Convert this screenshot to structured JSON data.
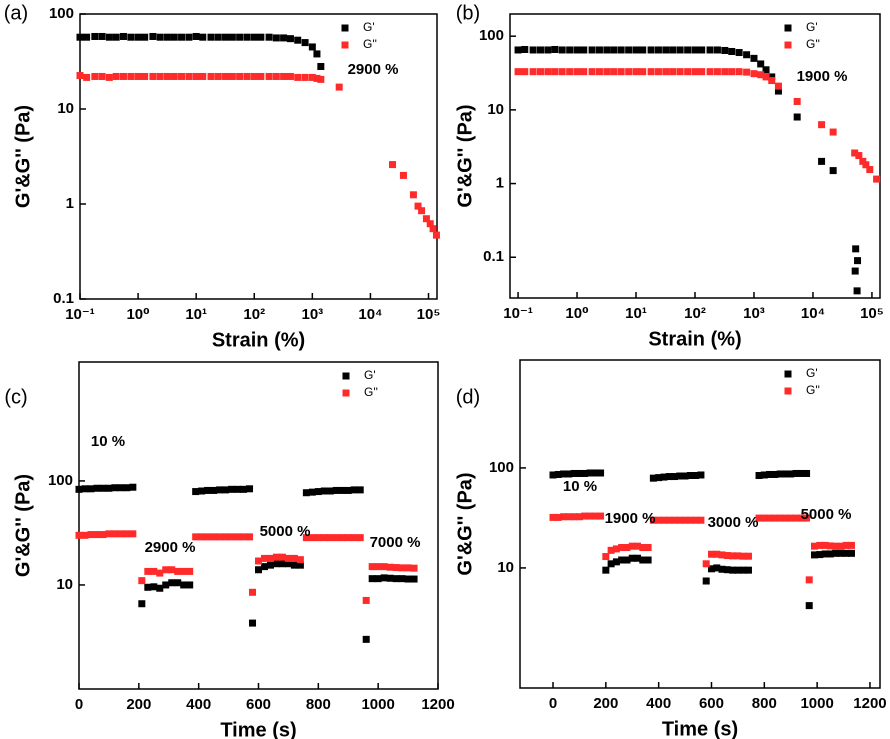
{
  "chart_data": [
    {
      "type": "scatter",
      "panel_label": "(a)",
      "x_label": "Strain (%)",
      "y_label": "G'&G'' (Pa)",
      "xscale": "log",
      "yscale": "log",
      "legend": "upper right",
      "xlim": [
        0.1,
        140000
      ],
      "ylim": [
        0.1,
        100
      ],
      "xticks": [
        {
          "value": 0.1,
          "label": "10⁻¹"
        },
        {
          "value": 1,
          "label": "10⁰"
        },
        {
          "value": 10,
          "label": "10¹"
        },
        {
          "value": 100,
          "label": "10²"
        },
        {
          "value": 1000,
          "label": "10³"
        },
        {
          "value": 10000,
          "label": "10⁴"
        },
        {
          "value": 100000,
          "label": "10⁵"
        }
      ],
      "yticks": [
        0.1,
        1,
        10,
        100
      ],
      "annotations": [
        "2900 %"
      ],
      "series": [
        {
          "name": "G'",
          "color": "#000000",
          "x": [
            0.1,
            0.13,
            0.18,
            0.24,
            0.32,
            0.42,
            0.56,
            0.75,
            1,
            1.3,
            1.8,
            2.4,
            3.2,
            4.2,
            5.6,
            7.5,
            10,
            13,
            18,
            24,
            32,
            42,
            56,
            75,
            100,
            130,
            180,
            240,
            320,
            420,
            560,
            750,
            1000,
            1200,
            1400
          ],
          "values": [
            57,
            57,
            58,
            58,
            57,
            57,
            58,
            57,
            57,
            57,
            58,
            57,
            57,
            57,
            57,
            57,
            58,
            57,
            57,
            57,
            57,
            57,
            57,
            57,
            57,
            57,
            57,
            56,
            56,
            55,
            53,
            50,
            45,
            38,
            28
          ]
        },
        {
          "name": "G''",
          "color": "#ff2a2a",
          "x": [
            0.1,
            0.13,
            0.18,
            0.24,
            0.32,
            0.42,
            0.56,
            0.75,
            1,
            1.3,
            1.8,
            2.4,
            3.2,
            4.2,
            5.6,
            7.5,
            10,
            13,
            18,
            24,
            32,
            42,
            56,
            75,
            100,
            130,
            180,
            240,
            320,
            420,
            560,
            750,
            1000,
            1200,
            1400,
            2900,
            24000,
            37000,
            55000,
            66000,
            76000,
            92000,
            107000,
            120000,
            137000
          ],
          "values": [
            22.5,
            21.5,
            22,
            22,
            21.5,
            22,
            22,
            22,
            22,
            22,
            22,
            22,
            22,
            22,
            22,
            22,
            22,
            22,
            22,
            22,
            22,
            22,
            22,
            22,
            22,
            22,
            22,
            22,
            22,
            22,
            21.5,
            21.5,
            21.5,
            21,
            20.5,
            17,
            2.6,
            2.0,
            1.25,
            0.95,
            0.85,
            0.7,
            0.62,
            0.55,
            0.47
          ]
        }
      ]
    },
    {
      "type": "scatter",
      "panel_label": "(b)",
      "x_label": "Strain (%)",
      "y_label": "G'&G'' (Pa)",
      "xscale": "log",
      "yscale": "log",
      "legend": "upper right",
      "xlim": [
        0.073,
        137000
      ],
      "ylim": [
        0.028,
        200
      ],
      "xticks": [
        {
          "value": 0.1,
          "label": "10⁻¹"
        },
        {
          "value": 1,
          "label": "10⁰"
        },
        {
          "value": 10,
          "label": "10¹"
        },
        {
          "value": 100,
          "label": "10²"
        },
        {
          "value": 1000,
          "label": "10³"
        },
        {
          "value": 10000,
          "label": "10⁴"
        },
        {
          "value": 100000,
          "label": "10⁵"
        }
      ],
      "yticks": [
        0.1,
        1,
        10,
        100
      ],
      "annotations": [
        "1900 %"
      ],
      "series": [
        {
          "name": "G'",
          "color": "#000000",
          "x": [
            0.1,
            0.13,
            0.18,
            0.24,
            0.32,
            0.42,
            0.56,
            0.75,
            1,
            1.3,
            1.8,
            2.4,
            3.2,
            4.2,
            5.6,
            7.5,
            10,
            13,
            18,
            24,
            32,
            42,
            56,
            75,
            100,
            130,
            180,
            240,
            320,
            420,
            560,
            750,
            1000,
            1300,
            1600,
            2000,
            2600,
            5400,
            14000,
            22000,
            53000,
            57000,
            52000,
            56000
          ],
          "values": [
            65,
            66,
            65,
            65,
            65,
            66,
            65,
            65,
            65,
            65,
            65,
            65,
            65,
            65,
            65,
            65,
            65,
            65,
            65,
            65,
            65,
            65,
            65,
            65,
            65,
            65,
            65,
            65,
            64,
            62,
            60,
            56,
            50,
            42,
            35,
            28,
            18,
            8,
            2.0,
            1.5,
            0.13,
            0.09,
            0.065,
            0.035
          ]
        },
        {
          "name": "G''",
          "color": "#ff2a2a",
          "x": [
            0.1,
            0.13,
            0.18,
            0.24,
            0.32,
            0.42,
            0.56,
            0.75,
            1,
            1.3,
            1.8,
            2.4,
            3.2,
            4.2,
            5.6,
            7.5,
            10,
            13,
            18,
            24,
            32,
            42,
            56,
            75,
            100,
            130,
            180,
            240,
            320,
            420,
            560,
            750,
            1000,
            1300,
            1600,
            2000,
            2600,
            5400,
            14000,
            22000,
            51000,
            60000,
            70000,
            79000,
            92000,
            120000
          ],
          "values": [
            33,
            33,
            33,
            33,
            33,
            33,
            33,
            33,
            33,
            33,
            33,
            33,
            33,
            33,
            33,
            33,
            33,
            33,
            33,
            33,
            33,
            33,
            33,
            33,
            33,
            33,
            33,
            33,
            33,
            33,
            33,
            32.5,
            31,
            30,
            28,
            25,
            21,
            13,
            6.3,
            5,
            2.6,
            2.4,
            2.0,
            1.8,
            1.55,
            1.15
          ]
        }
      ]
    },
    {
      "type": "scatter",
      "panel_label": "(c)",
      "x_label": "Time (s)",
      "y_label": "G'&G'' (Pa)",
      "xscale": "linear",
      "yscale": "log",
      "legend": "upper right",
      "xlim": [
        0,
        1200
      ],
      "ylim": [
        1,
        1390
      ],
      "xticks": [
        0,
        200,
        400,
        600,
        800,
        1000,
        1200
      ],
      "yticks": [
        10,
        100
      ],
      "annotations": [
        "10 %",
        "2900 %",
        "5000 %",
        "7000 %"
      ],
      "series": [
        {
          "name": "G'",
          "color": "#000000",
          "x": [
            0,
            20,
            40,
            60,
            80,
            100,
            120,
            140,
            160,
            180,
            210,
            230,
            250,
            270,
            290,
            310,
            330,
            350,
            370,
            390,
            410,
            430,
            450,
            470,
            490,
            510,
            530,
            550,
            570,
            580,
            600,
            620,
            640,
            660,
            680,
            700,
            720,
            740,
            760,
            780,
            800,
            820,
            840,
            860,
            880,
            900,
            920,
            940,
            960,
            980,
            1000,
            1020,
            1040,
            1060,
            1080,
            1100,
            1120
          ],
          "values": [
            83,
            84,
            84,
            85,
            85,
            85,
            86,
            86,
            86,
            87,
            6.6,
            9.5,
            9.6,
            9.3,
            10,
            10.5,
            10.5,
            10,
            10,
            79,
            80,
            81,
            81,
            82,
            82,
            83,
            83,
            83,
            84,
            4.3,
            14,
            15,
            15.5,
            16,
            16,
            16,
            15.5,
            15.5,
            77,
            78,
            79,
            80,
            80,
            81,
            81,
            81,
            82,
            82,
            3,
            11.5,
            11.5,
            11.7,
            11.6,
            11.5,
            11.5,
            11.4,
            11.4
          ]
        },
        {
          "name": "G''",
          "color": "#ff2a2a",
          "x": [
            0,
            20,
            40,
            60,
            80,
            100,
            120,
            140,
            160,
            180,
            210,
            230,
            250,
            270,
            290,
            310,
            330,
            350,
            370,
            390,
            410,
            430,
            450,
            470,
            490,
            510,
            530,
            550,
            570,
            580,
            600,
            620,
            640,
            660,
            680,
            700,
            720,
            740,
            760,
            780,
            800,
            820,
            840,
            860,
            880,
            900,
            920,
            940,
            960,
            980,
            1000,
            1020,
            1040,
            1060,
            1080,
            1100,
            1120
          ],
          "values": [
            30,
            30,
            30.5,
            30.5,
            30.5,
            31,
            31,
            31,
            31,
            31,
            11,
            13.5,
            13.5,
            13,
            14,
            14,
            13.5,
            13.5,
            13.5,
            29,
            29,
            29,
            29,
            29,
            29,
            29,
            29,
            29,
            29,
            8.5,
            17,
            18,
            18,
            18.5,
            18.5,
            18,
            18,
            17.5,
            28.5,
            28.5,
            28.5,
            28.5,
            28.5,
            28.5,
            28.5,
            28.5,
            28.5,
            28.5,
            7.1,
            15,
            15,
            15,
            14.8,
            14.7,
            14.6,
            14.6,
            14.5
          ]
        }
      ]
    },
    {
      "type": "scatter",
      "panel_label": "(d)",
      "x_label": "Time (s)",
      "y_label": "G'&G'' (Pa)",
      "xscale": "linear",
      "yscale": "log",
      "legend": "upper right",
      "xlim": [
        -125,
        1238
      ],
      "ylim": [
        0.63,
        1200
      ],
      "xticks": [
        0,
        200,
        400,
        600,
        800,
        1000,
        1200
      ],
      "yticks": [
        10,
        100
      ],
      "annotations": [
        "10 %",
        "1900 %",
        "3000 %",
        "5000 %"
      ],
      "series": [
        {
          "name": "G'",
          "color": "#000000",
          "x": [
            0,
            20,
            40,
            60,
            80,
            100,
            120,
            140,
            160,
            180,
            200,
            220,
            240,
            260,
            280,
            300,
            320,
            340,
            360,
            380,
            400,
            420,
            440,
            460,
            480,
            500,
            520,
            540,
            560,
            580,
            600,
            620,
            640,
            660,
            680,
            700,
            720,
            740,
            780,
            800,
            820,
            840,
            860,
            880,
            900,
            920,
            940,
            960,
            970,
            990,
            1010,
            1030,
            1050,
            1070,
            1090,
            1110,
            1130
          ],
          "values": [
            85,
            86,
            87,
            87,
            88,
            88,
            88,
            89,
            89,
            89,
            9.5,
            11,
            11.5,
            12,
            12,
            12.5,
            12.5,
            12,
            12,
            79,
            80,
            81,
            82,
            82,
            83,
            83,
            84,
            84,
            85,
            7.4,
            9.8,
            10,
            9.7,
            9.6,
            9.5,
            9.5,
            9.5,
            9.5,
            84,
            85,
            86,
            86,
            87,
            87,
            87,
            88,
            88,
            88,
            4.2,
            13.5,
            13.6,
            13.8,
            13.8,
            14,
            14,
            14,
            14
          ]
        },
        {
          "name": "G''",
          "color": "#ff2a2a",
          "x": [
            0,
            20,
            40,
            60,
            80,
            100,
            120,
            140,
            160,
            180,
            200,
            220,
            240,
            260,
            280,
            300,
            320,
            340,
            360,
            380,
            400,
            420,
            440,
            460,
            480,
            500,
            520,
            540,
            560,
            580,
            600,
            620,
            640,
            660,
            680,
            700,
            720,
            740,
            780,
            800,
            820,
            840,
            860,
            880,
            900,
            920,
            940,
            960,
            970,
            990,
            1010,
            1030,
            1050,
            1070,
            1090,
            1110,
            1130
          ],
          "values": [
            32,
            32,
            32.5,
            32.5,
            32.5,
            32.5,
            33,
            33,
            33,
            33,
            13,
            15,
            15.5,
            16,
            16,
            16.5,
            16.5,
            16,
            16,
            30,
            30,
            30,
            30,
            30,
            30,
            30,
            30,
            30,
            30,
            11,
            13.7,
            13.7,
            13.5,
            13.3,
            13.2,
            13.2,
            13.1,
            13.1,
            31.5,
            31.5,
            31.5,
            31.5,
            31.5,
            31.5,
            31.5,
            31.5,
            31.5,
            31.5,
            7.6,
            16.5,
            16.8,
            16.8,
            16.6,
            16.5,
            16.5,
            16.8,
            16.8
          ]
        }
      ]
    }
  ]
}
